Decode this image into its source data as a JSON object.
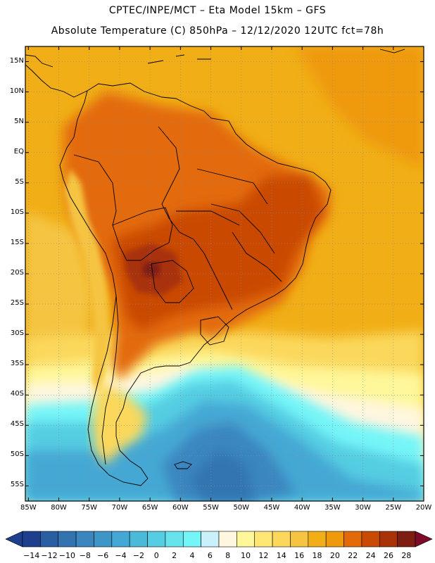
{
  "header": {
    "line1": "CPTEC/INPE/MCT –  Eta Model 15km – GFS",
    "line2": "Absolute Temperature (C) 850hPa – 12/12/2020 12UTC fct=78h"
  },
  "axes": {
    "lat_labels": [
      "15N",
      "10N",
      "5N",
      "EQ",
      "5S",
      "10S",
      "15S",
      "20S",
      "25S",
      "30S",
      "35S",
      "40S",
      "45S",
      "50S",
      "55S"
    ],
    "lon_labels": [
      "85W",
      "80W",
      "75W",
      "70W",
      "65W",
      "60W",
      "55W",
      "50W",
      "45W",
      "40W",
      "35W",
      "30W",
      "25W",
      "20W"
    ],
    "lat_range": [
      17.5,
      -57.5
    ],
    "lon_range": [
      -85.5,
      -20
    ]
  },
  "colorbar": {
    "labels": [
      "-14",
      "-12",
      "-10",
      "-8",
      "-6",
      "-4",
      "-2",
      "0",
      "2",
      "4",
      "6",
      "8",
      "10",
      "12",
      "14",
      "16",
      "18",
      "20",
      "22",
      "24",
      "26",
      "28"
    ],
    "colors": [
      "#1d3f8e",
      "#2a5ea2",
      "#3374b0",
      "#3b86bf",
      "#3e96c8",
      "#45a8d4",
      "#4bbad9",
      "#55cde2",
      "#66e3ec",
      "#74f5f8",
      "#c9f0fb",
      "#fff6df",
      "#fff79a",
      "#ffe775",
      "#fbd85b",
      "#f5c542",
      "#f1ae16",
      "#ef9a0c",
      "#e36a08",
      "#c94a05",
      "#a83308",
      "#7e1e12"
    ],
    "under_color": "#1d3f8e",
    "over_color": "#7e0a2a"
  },
  "colors": {
    "ocean_warm": "#f1ae16",
    "land_base": "#ef9a0c",
    "border": "#000000"
  }
}
